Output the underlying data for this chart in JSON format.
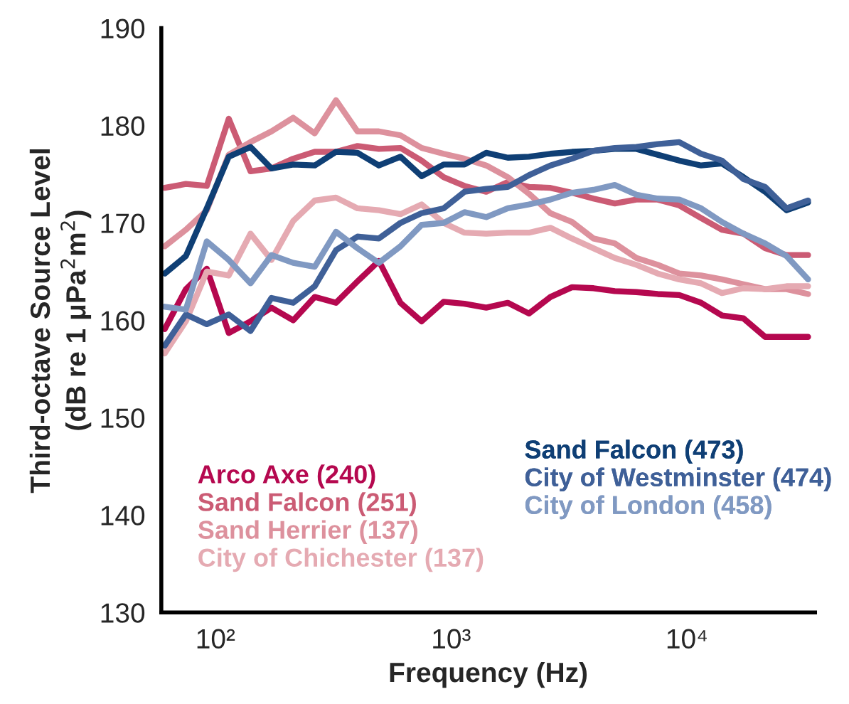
{
  "chart_data": {
    "type": "line",
    "xlabel": "Frequency (Hz)",
    "ylabel": "Third-octave Source Level\n(dB re 1 μPa$^{2}$m$^{2}$)",
    "x": [
      61,
      75,
      92,
      114,
      141,
      173,
      214,
      264,
      325,
      401,
      494,
      610,
      750,
      930,
      1140,
      1410,
      1740,
      2140,
      2640,
      3260,
      4020,
      4950,
      6110,
      7530,
      9290,
      11500,
      14100,
      17400,
      21500,
      26500,
      32700
    ],
    "series": [
      {
        "name": "Arco Axe (240)",
        "color": "#b5084f",
        "values": [
          159.1,
          163.2,
          165.3,
          158.7,
          159.9,
          161.3,
          160.0,
          162.4,
          161.8,
          164.0,
          166.1,
          161.8,
          159.9,
          161.9,
          161.7,
          161.3,
          161.8,
          160.7,
          162.4,
          163.4,
          163.3,
          163.0,
          162.9,
          162.7,
          162.6,
          161.8,
          160.5,
          160.2,
          158.3,
          158.3,
          158.3
        ]
      },
      {
        "name": "Sand Falcon (251)",
        "color": "#cb5b74",
        "values": [
          173.6,
          174.0,
          173.8,
          180.7,
          175.3,
          175.6,
          176.6,
          177.3,
          177.3,
          177.9,
          177.6,
          177.7,
          176.4,
          174.7,
          173.8,
          173.2,
          174.2,
          173.7,
          173.6,
          173.1,
          172.5,
          172.0,
          172.4,
          172.4,
          171.8,
          170.5,
          169.3,
          168.9,
          167.4,
          166.7,
          166.7
        ]
      },
      {
        "name": "Sand Herrier (137)",
        "color": "#dd919d",
        "values": [
          167.6,
          169.3,
          171.3,
          177.0,
          178.3,
          179.4,
          180.8,
          179.2,
          182.6,
          179.4,
          179.4,
          179.0,
          177.7,
          177.1,
          176.6,
          175.9,
          174.7,
          173.0,
          171.0,
          170.1,
          168.4,
          167.9,
          166.4,
          165.7,
          164.8,
          164.6,
          164.2,
          163.7,
          163.2,
          163.2,
          162.7
        ]
      },
      {
        "name": "City of Chichester (137)",
        "color": "#e5aab2",
        "values": [
          156.6,
          159.9,
          165.0,
          164.6,
          168.9,
          166.2,
          170.2,
          172.3,
          172.6,
          171.5,
          171.3,
          170.9,
          171.9,
          170.0,
          169.0,
          168.9,
          169.0,
          169.0,
          169.5,
          168.4,
          167.4,
          166.4,
          165.7,
          164.8,
          164.2,
          163.8,
          162.8,
          163.3,
          163.2,
          163.5,
          163.5
        ]
      },
      {
        "name": "Sand Falcon (473)",
        "color": "#0f3f75",
        "values": [
          164.8,
          166.6,
          171.5,
          176.8,
          177.8,
          175.6,
          176.0,
          175.9,
          177.3,
          177.2,
          175.9,
          176.8,
          174.8,
          176.0,
          176.0,
          177.2,
          176.7,
          176.8,
          177.1,
          177.3,
          177.4,
          177.6,
          177.6,
          177.0,
          176.4,
          175.9,
          176.1,
          174.7,
          173.2,
          171.3,
          172.1
        ]
      },
      {
        "name": "City of Westminster (474)",
        "color": "#3f6098",
        "values": [
          157.4,
          160.6,
          159.6,
          160.6,
          158.9,
          162.3,
          161.8,
          163.5,
          167.2,
          168.6,
          168.4,
          170.0,
          171.0,
          171.5,
          173.2,
          173.5,
          173.7,
          174.9,
          175.9,
          176.6,
          177.4,
          177.7,
          177.8,
          178.1,
          178.3,
          177.1,
          176.4,
          174.5,
          173.7,
          171.5,
          172.3
        ]
      },
      {
        "name": "City of London (458)",
        "color": "#8099c2",
        "values": [
          161.4,
          161.1,
          168.1,
          166.2,
          163.8,
          166.7,
          165.9,
          165.5,
          169.1,
          167.4,
          165.9,
          167.6,
          169.8,
          170.0,
          171.1,
          170.6,
          171.5,
          171.9,
          172.4,
          173.1,
          173.4,
          173.9,
          172.9,
          172.5,
          172.4,
          171.5,
          170.1,
          168.9,
          167.9,
          166.6,
          164.2
        ]
      }
    ],
    "log": "x",
    "xlim": [
      59,
      35000
    ],
    "xticks": [
      {
        "value": 100,
        "label": "10²"
      },
      {
        "value": 1000,
        "label": "10³"
      },
      {
        "value": 10000,
        "label": "10⁴"
      }
    ],
    "ylim": [
      130,
      190
    ],
    "yticks": [
      130,
      140,
      150,
      160,
      170,
      180,
      190
    ],
    "legend": "bottom",
    "grid": false,
    "line_style": "solid",
    "marker": "none"
  }
}
